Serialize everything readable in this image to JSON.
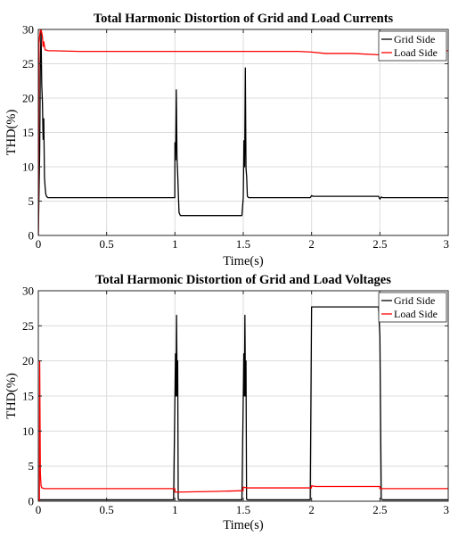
{
  "chart_data": [
    {
      "type": "line",
      "title": "Total Harmonic Distortion of Grid and Load Currents",
      "xlabel": "Time(s)",
      "ylabel": "THD(%)",
      "xlim": [
        0,
        3
      ],
      "ylim": [
        0,
        30
      ],
      "xticks": [
        0,
        0.5,
        1,
        1.5,
        2,
        2.5,
        3
      ],
      "xtick_labels": [
        "0",
        "0.5",
        "1",
        "1.5",
        "2",
        "2.5",
        "3"
      ],
      "yticks": [
        0,
        5,
        10,
        15,
        20,
        25,
        30
      ],
      "ytick_labels": [
        "0",
        "5",
        "10",
        "15",
        "20",
        "25",
        "30"
      ],
      "grid": true,
      "legend_position": "top-right",
      "series": [
        {
          "name": "Grid Side",
          "color": "#000000",
          "x": [
            0,
            0.01,
            0.015,
            0.02,
            0.025,
            0.03,
            0.035,
            0.04,
            0.045,
            0.05,
            0.055,
            0.06,
            0.07,
            0.1,
            0.3,
            0.5,
            0.7,
            0.9,
            0.999,
            1.0,
            1.005,
            1.01,
            1.015,
            1.02,
            1.025,
            1.03,
            1.04,
            1.1,
            1.3,
            1.49,
            1.5,
            1.505,
            1.51,
            1.515,
            1.52,
            1.525,
            1.53,
            1.54,
            1.6,
            1.8,
            1.99,
            2.0,
            2.01,
            2.3,
            2.49,
            2.5,
            2.51,
            2.52,
            2.7,
            3.0
          ],
          "y": [
            0,
            12,
            25,
            30,
            22,
            19.5,
            14,
            17,
            8.5,
            7,
            6,
            5.7,
            5.5,
            5.5,
            5.5,
            5.5,
            5.5,
            5.5,
            5.5,
            13.5,
            11,
            21.2,
            11.2,
            9,
            6,
            3.3,
            2.9,
            2.9,
            2.9,
            2.9,
            5.5,
            13.8,
            10,
            24.4,
            9.8,
            8.5,
            5.7,
            5.5,
            5.5,
            5.5,
            5.5,
            5.8,
            5.7,
            5.7,
            5.7,
            5.3,
            5.6,
            5.5,
            5.5,
            5.5
          ]
        },
        {
          "name": "Load Side",
          "color": "#ff0000",
          "x": [
            0,
            0.005,
            0.01,
            0.015,
            0.02,
            0.025,
            0.03,
            0.035,
            0.04,
            0.05,
            0.06,
            0.07,
            0.1,
            0.3,
            0.5,
            0.7,
            1.0,
            1.3,
            1.6,
            1.9,
            2.0,
            2.1,
            2.3,
            2.5,
            2.52,
            2.55,
            2.7,
            3.0
          ],
          "y": [
            0,
            28,
            29,
            30,
            30,
            29.5,
            29,
            27.5,
            28.2,
            27,
            27,
            26.9,
            26.9,
            26.8,
            26.8,
            26.8,
            26.8,
            26.8,
            26.8,
            26.8,
            26.7,
            26.5,
            26.5,
            26.3,
            26.8,
            27,
            26.9,
            26.9
          ]
        }
      ]
    },
    {
      "type": "line",
      "title": "Total Harmonic Distortion of Grid and Load Voltages",
      "xlabel": "Time(s)",
      "ylabel": "THD(%)",
      "xlim": [
        0,
        3
      ],
      "ylim": [
        0,
        30
      ],
      "xticks": [
        0,
        0.5,
        1,
        1.5,
        2,
        2.5,
        3
      ],
      "xtick_labels": [
        "0",
        "0.5",
        "1",
        "1.5",
        "2",
        "2.5",
        "3"
      ],
      "yticks": [
        0,
        5,
        10,
        15,
        20,
        25,
        30
      ],
      "ytick_labels": [
        "0",
        "5",
        "10",
        "15",
        "20",
        "25",
        "30"
      ],
      "grid": true,
      "legend_position": "top-right",
      "series": [
        {
          "name": "Grid Side",
          "color": "#000000",
          "x": [
            0,
            0.99,
            1.0,
            1.004,
            1.008,
            1.012,
            1.016,
            1.02,
            1.024,
            1.03,
            1.49,
            1.5,
            1.504,
            1.508,
            1.512,
            1.516,
            1.52,
            1.524,
            1.53,
            1.99,
            2.0,
            2.01,
            2.49,
            2.5,
            2.51,
            2.52,
            3.0
          ],
          "y": [
            0.2,
            0.2,
            15,
            21,
            15,
            26.5,
            15,
            20,
            0.3,
            0.2,
            0.2,
            15,
            21,
            15,
            26.5,
            15,
            20,
            0.3,
            0.2,
            0.2,
            27.7,
            27.7,
            27.7,
            23.5,
            0.3,
            0.2,
            0.2
          ]
        },
        {
          "name": "Load Side",
          "color": "#ff0000",
          "x": [
            0,
            0.008,
            0.01,
            0.015,
            0.02,
            0.025,
            0.03,
            0.04,
            0.1,
            0.5,
            0.999,
            1.0,
            1.03,
            1.3,
            1.499,
            1.5,
            1.53,
            1.8,
            1.999,
            2.0,
            2.03,
            2.3,
            2.499,
            2.5,
            2.53,
            2.8,
            3.0
          ],
          "y": [
            0,
            0,
            20,
            4,
            2.2,
            1.9,
            1.9,
            1.8,
            1.8,
            1.8,
            1.8,
            1.3,
            1.3,
            1.4,
            1.5,
            2.0,
            1.9,
            1.9,
            1.9,
            2.2,
            2.1,
            2.1,
            2.1,
            1.8,
            1.8,
            1.8,
            1.8
          ]
        }
      ]
    }
  ]
}
